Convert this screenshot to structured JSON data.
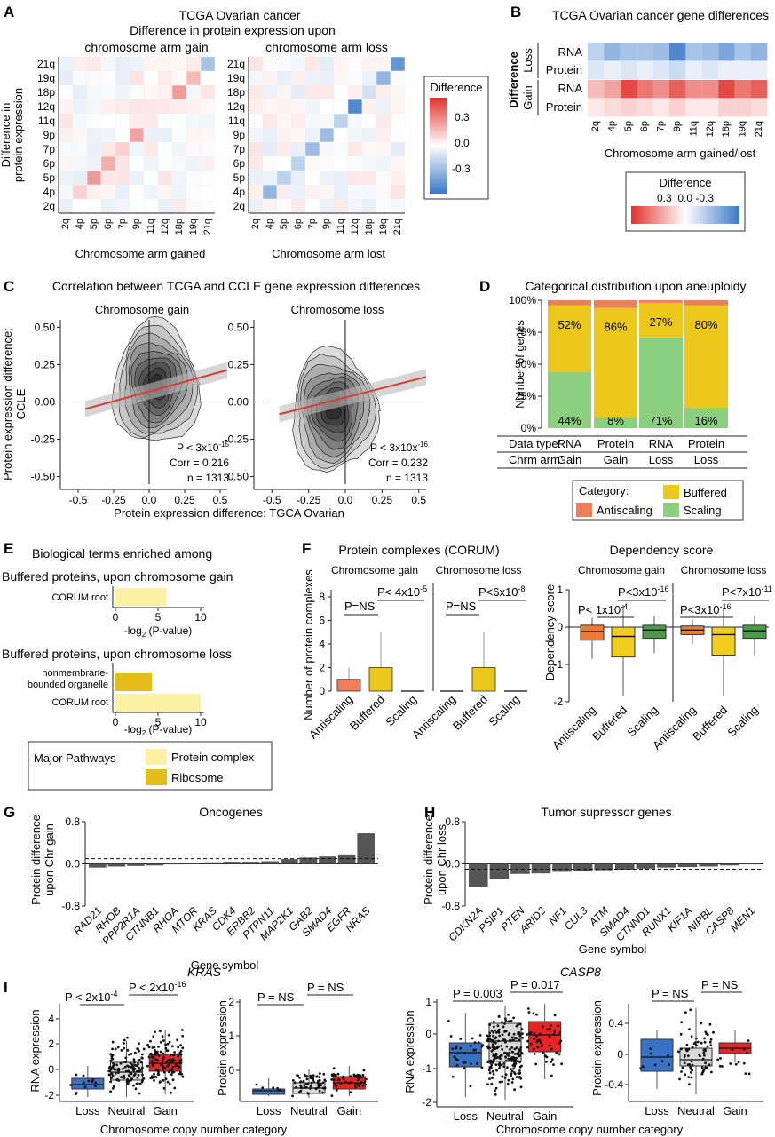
{
  "panelA": {
    "letter": "A",
    "title1": "TCGA Ovarian cancer",
    "title2": "Difference in protein expression upon",
    "sub_gain": "chromosome arm gain",
    "sub_loss": "chromosome arm loss",
    "ylabel1": "Difference in",
    "ylabel2": "protein expression",
    "xlabel_gain": "Chromosome arm gained",
    "xlabel_loss": "Chromosome arm lost",
    "legend_title": "Difference",
    "legend_ticks": [
      "0.3",
      "0.0",
      "-0.3"
    ]
  },
  "panelB": {
    "letter": "B",
    "title": "TCGA Ovarian cancer gene differences",
    "ylabel": "Difference",
    "group_loss": "Loss",
    "group_gain": "Gain",
    "row_rna": "RNA",
    "row_protein": "Protein",
    "xlabel": "Chromosome arm gained/lost",
    "legend_title": "Difference",
    "legend_ticks": "0.3  0.0 -0.3"
  },
  "panelC": {
    "letter": "C",
    "title": "Correlation between TCGA and CCLE gene expression differences",
    "sub_gain": "Chromosome gain",
    "sub_loss": "Chromosome loss",
    "ylabel1": "Protein expression difference:",
    "ylabel2": "CCLE",
    "xlabel": "Protein expression difference: TGCA Ovarian",
    "gain_stats": {
      "p_base": "P < 3x10",
      "p_exp": "-15",
      "corr": "Corr = 0.216",
      "n": "n = 1313"
    },
    "loss_stats": {
      "p_base": "P < 3x10x",
      "p_exp": "-16",
      "corr": "Corr = 0.232",
      "n": "n = 1313"
    }
  },
  "panelD": {
    "letter": "D",
    "title": "Categorical distribution upon aneuploidy",
    "ylabel": "Number of genes",
    "row1_label": "Data type:",
    "row2_label": "Chrm arm:",
    "legend_title": "Category:",
    "legend_buffered": "Buffered",
    "legend_antiscaling": "Antiscaling",
    "legend_scaling": "Scaling"
  },
  "panelE": {
    "letter": "E",
    "title": "Biological terms enriched among",
    "sub1": "Buffered proteins, upon chromosome gain",
    "sub2": "Buffered proteins, upon chromosome loss",
    "term_corum": "CORUM root",
    "term_nm1": "nonmembrane-",
    "term_nm2": "bounded organelle",
    "xlabel_base": "-log",
    "xlabel_sub": "2",
    "xlabel_tail": " (P-value)",
    "legend_title": "Major Pathways",
    "legend_protein_complex": "Protein complex",
    "legend_ribosome": "Ribosome",
    "values": {
      "gain_corum": 6,
      "loss_nm": 4.3,
      "loss_corum": 10
    }
  },
  "panelF": {
    "letter": "F",
    "title_left": "Protein complexes (CORUM)",
    "title_right": "Dependency score",
    "sub_gain": "Chromosome gain",
    "sub_loss": "Chromosome loss",
    "ylabel_left": "Number of protein complexes",
    "ylabel_right": "Dependency score",
    "cats": [
      "Antiscaling",
      "Buffered",
      "Scaling"
    ],
    "p_ns": "P=NS",
    "left_p_gain": {
      "base": "P< 4x10",
      "exp": "-5"
    },
    "left_p_loss": {
      "base": "P<6x10",
      "exp": "-8"
    },
    "right_p_gain_top": {
      "base": "P<3x10",
      "exp": "-16"
    },
    "right_p_gain_low": {
      "base": "P< 1x10",
      "exp": "-4"
    },
    "right_p_loss_top": {
      "base": "P<7x10",
      "exp": "-11"
    },
    "right_p_loss_low": {
      "base": "P<3x10",
      "exp": "-16"
    }
  },
  "panelG": {
    "letter": "G",
    "title": "Oncogenes",
    "ylabel1": "Protein difference",
    "ylabel2": "upon Chr gain",
    "xlabel": "Gene symbol"
  },
  "panelH": {
    "letter": "H",
    "title": "Tumor supressor genes",
    "ylabel1": "Protein difference",
    "ylabel2": "upon Chr loss",
    "xlabel": "Gene symbol"
  },
  "panelI": {
    "letter": "I",
    "gene1": "KRAS",
    "gene2": "CASP8",
    "rna_label": "RNA expression",
    "protein_label": "Protein expression",
    "xlabel": "Chromosome copy number category",
    "cats": [
      "Loss",
      "Neutral",
      "Gain"
    ],
    "kras_rna_p1": {
      "base": "P < 2x10",
      "exp": "-4"
    },
    "kras_rna_p2": {
      "base": "P < 2x10",
      "exp": "-16"
    },
    "p_ns": "P = NS",
    "casp8_rna_p1": "P = 0.003",
    "casp8_rna_p2": "P = 0.017"
  },
  "colors": {
    "antiscaling": "#ef7f5a",
    "buffered": "#ecc81c",
    "scaling": "#8dcf80",
    "buffered_light": "#fbf0a4",
    "ribosome": "#e3bd18",
    "box_orange": "#ec7b37",
    "box_yellow": "#f0cd1e",
    "box_green": "#4e9a4b",
    "box_blue": "#3a72c3",
    "box_gray": "#d9d9d9",
    "box_red": "#e52524",
    "reg_line": "#d93b35"
  },
  "chart_data": [
    {
      "id": "A",
      "type": "heatmap",
      "arms": [
        "2q",
        "4p",
        "5p",
        "6p",
        "7p",
        "9p",
        "11q",
        "12q",
        "18p",
        "19q",
        "21q"
      ],
      "gain_diag": [
        -0.05,
        0.1,
        0.22,
        0.18,
        0.1,
        0.2,
        0.05,
        0.05,
        0.22,
        0.15,
        -0.2
      ],
      "loss_diag": [
        -0.05,
        -0.25,
        -0.15,
        -0.15,
        -0.22,
        -0.22,
        -0.15,
        -0.4,
        -0.1,
        -0.25,
        -0.35
      ],
      "colorbar_range": [
        -0.4,
        0.4
      ]
    },
    {
      "id": "B",
      "type": "heatmap",
      "arms": [
        "2q",
        "4p",
        "5p",
        "6p",
        "7p",
        "9p",
        "11q",
        "12q",
        "18p",
        "19q",
        "21q"
      ],
      "rows": [
        "Loss RNA",
        "Loss Protein",
        "Gain RNA",
        "Gain Protein"
      ],
      "values": [
        [
          -0.15,
          -0.25,
          -0.2,
          -0.2,
          -0.22,
          -0.4,
          -0.2,
          -0.22,
          -0.3,
          -0.2,
          -0.25
        ],
        [
          -0.08,
          -0.05,
          -0.08,
          -0.05,
          -0.08,
          -0.12,
          -0.05,
          -0.08,
          -0.05,
          -0.05,
          -0.05
        ],
        [
          0.15,
          0.2,
          0.4,
          0.3,
          0.25,
          0.35,
          0.25,
          0.25,
          0.4,
          0.3,
          0.35
        ],
        [
          0.05,
          0.08,
          0.1,
          0.08,
          0.05,
          0.1,
          0.05,
          0.05,
          0.1,
          0.1,
          0.08
        ]
      ]
    },
    {
      "id": "C",
      "type": "scatter",
      "panels": [
        {
          "name": "Chromosome gain",
          "intercept": 0.07,
          "slope": 0.26,
          "center": [
            0.05,
            0.12
          ]
        },
        {
          "name": "Chromosome loss",
          "intercept": 0.03,
          "slope": 0.25,
          "center": [
            -0.08,
            -0.06
          ]
        }
      ],
      "xlim": [
        -0.55,
        0.55
      ],
      "ylim": [
        -0.55,
        0.55
      ]
    },
    {
      "id": "D",
      "type": "bar",
      "categories": [
        "RNA Gain",
        "Protein Gain",
        "RNA Loss",
        "Protein Loss"
      ],
      "series": [
        {
          "name": "Scaling",
          "values": [
            44,
            8,
            71,
            16
          ]
        },
        {
          "name": "Buffered",
          "values": [
            52,
            86,
            27,
            80
          ]
        },
        {
          "name": "Antiscaling",
          "values": [
            4,
            6,
            2,
            4
          ]
        }
      ],
      "ylim": [
        0,
        100
      ]
    },
    {
      "id": "G",
      "type": "bar",
      "categories": [
        "RAD21",
        "RHOB",
        "PPP2R1A",
        "CTNNB1",
        "RHOA",
        "MTOR",
        "KRAS",
        "CDK4",
        "ERBB2",
        "PTPN11",
        "MAP2K1",
        "GAB2",
        "SMAD4",
        "EGFR",
        "NRAS"
      ],
      "values": [
        -0.07,
        -0.05,
        -0.04,
        -0.03,
        -0.01,
        0.01,
        0.03,
        0.04,
        0.04,
        0.05,
        0.09,
        0.12,
        0.14,
        0.18,
        0.58
      ],
      "ylim": [
        -0.8,
        0.8
      ],
      "dashed_y": 0.1
    },
    {
      "id": "H",
      "type": "bar",
      "categories": [
        "CDKN2A",
        "PSIP1",
        "PTEN",
        "ARID2",
        "NF1",
        "CUL3",
        "ATM",
        "SMAD4",
        "CTNND1",
        "RUNX1",
        "KIF1A",
        "NIPBL",
        "CASP8",
        "MEN1"
      ],
      "values": [
        -0.43,
        -0.28,
        -0.19,
        -0.18,
        -0.15,
        -0.13,
        -0.12,
        -0.11,
        -0.09,
        -0.07,
        -0.06,
        -0.05,
        -0.03,
        -0.01
      ],
      "ylim": [
        -0.8,
        0.8
      ],
      "dashed_y": -0.1
    }
  ]
}
